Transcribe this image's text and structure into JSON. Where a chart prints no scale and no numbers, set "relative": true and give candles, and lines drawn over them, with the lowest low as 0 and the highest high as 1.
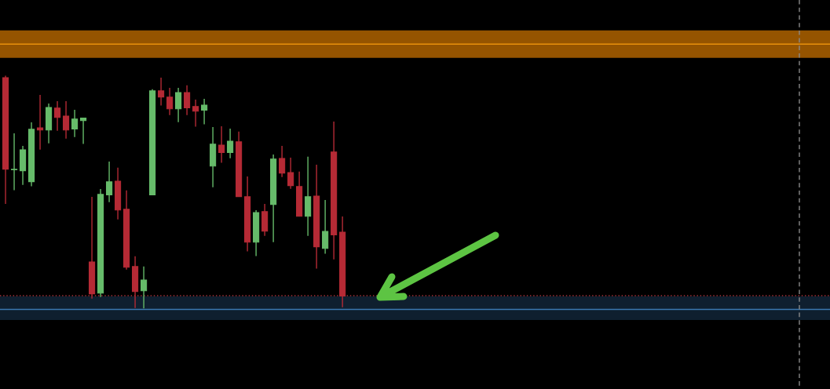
{
  "chart_data": {
    "type": "candlestick",
    "relative": true,
    "categories": [
      null,
      null,
      null,
      null,
      null,
      null,
      null,
      null,
      null,
      null,
      null,
      null,
      null,
      null,
      null,
      null,
      null,
      null,
      null,
      null,
      null,
      null,
      null,
      null,
      null,
      null,
      null,
      null,
      null,
      null,
      null,
      null,
      null,
      null,
      null,
      null,
      null,
      null,
      null,
      null
    ],
    "ohlc": [
      [
        0.992,
        1.0,
        0.449,
        0.599
      ],
      [
        0.596,
        0.753,
        0.508,
        0.598
      ],
      [
        0.592,
        0.699,
        0.531,
        0.682
      ],
      [
        0.545,
        0.8,
        0.525,
        0.77
      ],
      [
        0.776,
        0.918,
        0.683,
        0.767
      ],
      [
        0.767,
        0.881,
        0.71,
        0.864
      ],
      [
        0.861,
        0.891,
        0.764,
        0.821
      ],
      [
        0.827,
        0.891,
        0.73,
        0.767
      ],
      [
        0.771,
        0.854,
        0.737,
        0.814
      ],
      [
        0.808,
        0.82,
        0.707,
        0.818
      ],
      [
        0.2,
        0.48,
        0.042,
        0.063
      ],
      [
        0.066,
        0.513,
        0.049,
        0.49
      ],
      [
        0.488,
        0.631,
        0.457,
        0.544
      ],
      [
        0.547,
        0.605,
        0.383,
        0.423
      ],
      [
        0.426,
        0.507,
        0.167,
        0.177
      ],
      [
        0.18,
        0.224,
        0.002,
        0.073
      ],
      [
        0.076,
        0.18,
        0.0,
        0.122
      ],
      [
        0.488,
        0.942,
        0.488,
        0.935
      ],
      [
        0.935,
        0.992,
        0.872,
        0.909
      ],
      [
        0.908,
        0.948,
        0.831,
        0.858
      ],
      [
        0.858,
        0.948,
        0.801,
        0.928
      ],
      [
        0.928,
        0.959,
        0.831,
        0.862
      ],
      [
        0.868,
        0.898,
        0.781,
        0.848
      ],
      [
        0.852,
        0.901,
        0.791,
        0.874
      ],
      [
        0.612,
        0.78,
        0.521,
        0.706
      ],
      [
        0.702,
        0.783,
        0.626,
        0.67
      ],
      [
        0.67,
        0.773,
        0.646,
        0.719
      ],
      [
        0.716,
        0.76,
        0.481,
        0.481
      ],
      [
        0.48,
        0.567,
        0.245,
        0.285
      ],
      [
        0.285,
        0.422,
        0.225,
        0.412
      ],
      [
        0.416,
        0.449,
        0.312,
        0.332
      ],
      [
        0.447,
        0.662,
        0.285,
        0.642
      ],
      [
        0.645,
        0.699,
        0.565,
        0.582
      ],
      [
        0.584,
        0.648,
        0.514,
        0.528
      ],
      [
        0.524,
        0.588,
        0.396,
        0.396
      ],
      [
        0.396,
        0.652,
        0.312,
        0.48
      ],
      [
        0.483,
        0.618,
        0.171,
        0.265
      ],
      [
        0.258,
        0.466,
        0.235,
        0.331
      ],
      [
        0.672,
        0.803,
        0.211,
        0.316
      ],
      [
        0.328,
        0.395,
        0.005,
        0.053
      ]
    ],
    "colors": [
      "#b52a35",
      "#66bb6a",
      "#66bb6a",
      "#66bb6a",
      "#b52a35",
      "#66bb6a",
      "#b52a35",
      "#b52a35",
      "#66bb6a",
      "#66bb6a",
      "#b52a35",
      "#66bb6a",
      "#66bb6a",
      "#b52a35",
      "#b52a35",
      "#b52a35",
      "#66bb6a",
      "#66bb6a",
      "#b52a35",
      "#b52a35",
      "#66bb6a",
      "#b52a35",
      "#b52a35",
      "#66bb6a",
      "#66bb6a",
      "#b52a35",
      "#66bb6a",
      "#b52a35",
      "#b52a35",
      "#66bb6a",
      "#b52a35",
      "#66bb6a",
      "#b52a35",
      "#b52a35",
      "#b52a35",
      "#66bb6a",
      "#b52a35",
      "#66bb6a",
      "#b52a35",
      "#b52a35"
    ],
    "bands": [
      {
        "axis": "y",
        "from": 1.077,
        "to": 1.195,
        "color": "#955400"
      },
      {
        "axis": "y",
        "from": -0.05,
        "to": 0.052,
        "color": "#0f1f2f"
      }
    ],
    "ref_lines": [
      {
        "axis": "y",
        "value": 1.136,
        "color": "#e8900c",
        "line_style": "solid"
      },
      {
        "axis": "y",
        "value": -0.004,
        "color": "#3b78b0",
        "line_style": "solid"
      },
      {
        "axis": "y",
        "value": 0.055,
        "color": "#a8323c",
        "line_style": "dotted"
      }
    ]
  }
}
